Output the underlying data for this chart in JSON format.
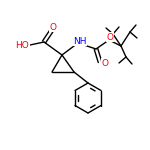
{
  "background_color": "#ffffff",
  "bond_color": "#000000",
  "atom_colors": {
    "O": "#ff0000",
    "N": "#0000ff",
    "C": "#000000",
    "H": "#000000"
  },
  "figsize": [
    1.5,
    1.5
  ],
  "dpi": 100,
  "lw": 1.0,
  "fontsize": 6.5
}
